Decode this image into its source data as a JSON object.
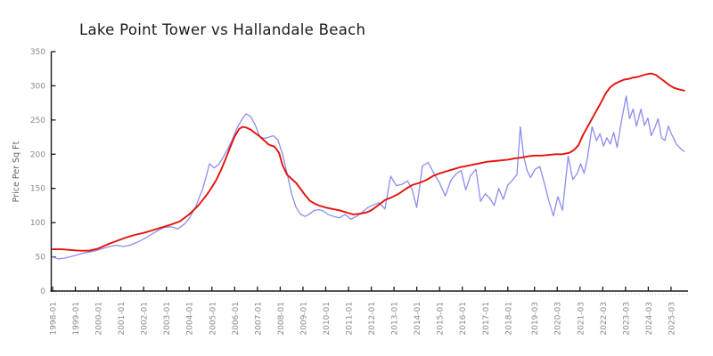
{
  "chart_data": {
    "type": "line",
    "title": "Lake Point Tower vs Hallandale Beach",
    "xlabel": "",
    "ylabel": "Price Per Sq Ft",
    "ylim": [
      0,
      350
    ],
    "xlim_years": [
      1997.95,
      2025.9
    ],
    "grid": false,
    "legend": "none",
    "style": "xkcd-sketch",
    "colors": {
      "axis": "#1a1a1a",
      "tick_labels": "#8a8a8a",
      "background": "#ffffff"
    },
    "y_ticks": [
      0,
      50,
      100,
      150,
      200,
      250,
      300,
      350
    ],
    "x_ticks": [
      {
        "label": "1998-01",
        "year": 1998.0
      },
      {
        "label": "1999-01",
        "year": 1999.0
      },
      {
        "label": "2000-01",
        "year": 2000.0
      },
      {
        "label": "2001-01",
        "year": 2001.0
      },
      {
        "label": "2002-01",
        "year": 2002.0
      },
      {
        "label": "2003-01",
        "year": 2003.0
      },
      {
        "label": "2004-01",
        "year": 2004.0
      },
      {
        "label": "2005-01",
        "year": 2005.0
      },
      {
        "label": "2006-01",
        "year": 2006.0
      },
      {
        "label": "2007-01",
        "year": 2007.0
      },
      {
        "label": "2008-01",
        "year": 2008.0
      },
      {
        "label": "2009-01",
        "year": 2009.0
      },
      {
        "label": "2010-01",
        "year": 2010.0
      },
      {
        "label": "2011-01",
        "year": 2011.0
      },
      {
        "label": "2012-01",
        "year": 2012.0
      },
      {
        "label": "2013-01",
        "year": 2013.0
      },
      {
        "label": "2014-01",
        "year": 2014.0
      },
      {
        "label": "2015-01",
        "year": 2015.0
      },
      {
        "label": "2016-01",
        "year": 2016.0
      },
      {
        "label": "2017-01",
        "year": 2017.0
      },
      {
        "label": "2018-01",
        "year": 2018.0
      },
      {
        "label": "2019-03",
        "year": 2019.17
      },
      {
        "label": "2020-03",
        "year": 2020.17
      },
      {
        "label": "2021-03",
        "year": 2021.17
      },
      {
        "label": "2022-03",
        "year": 2022.17
      },
      {
        "label": "2023-03",
        "year": 2023.17
      },
      {
        "label": "2024-03",
        "year": 2024.17
      },
      {
        "label": "2025-03",
        "year": 2025.17
      }
    ],
    "series": [
      {
        "name": "Lake Point Tower",
        "color": "#8c8cf0",
        "line_width": 1.3,
        "points": [
          [
            1998.0,
            50
          ],
          [
            1998.25,
            47
          ],
          [
            1998.5,
            48
          ],
          [
            1998.75,
            50
          ],
          [
            1999.0,
            52
          ],
          [
            1999.3,
            55
          ],
          [
            1999.6,
            57
          ],
          [
            1999.9,
            59
          ],
          [
            2000.2,
            62
          ],
          [
            2000.5,
            65
          ],
          [
            2000.8,
            67
          ],
          [
            2001.1,
            65
          ],
          [
            2001.4,
            67
          ],
          [
            2001.7,
            71
          ],
          [
            2002.0,
            76
          ],
          [
            2002.3,
            82
          ],
          [
            2002.6,
            88
          ],
          [
            2002.9,
            93
          ],
          [
            2003.2,
            94
          ],
          [
            2003.5,
            91
          ],
          [
            2003.8,
            98
          ],
          [
            2004.0,
            106
          ],
          [
            2004.3,
            124
          ],
          [
            2004.6,
            150
          ],
          [
            2004.9,
            186
          ],
          [
            2005.1,
            180
          ],
          [
            2005.3,
            185
          ],
          [
            2005.5,
            196
          ],
          [
            2005.7,
            208
          ],
          [
            2005.9,
            222
          ],
          [
            2006.1,
            238
          ],
          [
            2006.3,
            250
          ],
          [
            2006.5,
            259
          ],
          [
            2006.7,
            255
          ],
          [
            2006.9,
            243
          ],
          [
            2007.1,
            226
          ],
          [
            2007.3,
            223
          ],
          [
            2007.5,
            225
          ],
          [
            2007.7,
            227
          ],
          [
            2007.9,
            221
          ],
          [
            2008.1,
            200
          ],
          [
            2008.3,
            172
          ],
          [
            2008.5,
            142
          ],
          [
            2008.7,
            122
          ],
          [
            2008.9,
            112
          ],
          [
            2009.1,
            109
          ],
          [
            2009.3,
            113
          ],
          [
            2009.5,
            118
          ],
          [
            2009.7,
            119
          ],
          [
            2009.9,
            117
          ],
          [
            2010.1,
            112
          ],
          [
            2010.35,
            109
          ],
          [
            2010.6,
            107
          ],
          [
            2010.85,
            112
          ],
          [
            2011.1,
            105
          ],
          [
            2011.35,
            109
          ],
          [
            2011.6,
            115
          ],
          [
            2011.85,
            122
          ],
          [
            2012.1,
            126
          ],
          [
            2012.35,
            129
          ],
          [
            2012.6,
            120
          ],
          [
            2012.85,
            168
          ],
          [
            2013.1,
            154
          ],
          [
            2013.35,
            156
          ],
          [
            2013.6,
            161
          ],
          [
            2013.8,
            148
          ],
          [
            2014.0,
            122
          ],
          [
            2014.25,
            183
          ],
          [
            2014.5,
            188
          ],
          [
            2014.75,
            172
          ],
          [
            2015.0,
            158
          ],
          [
            2015.25,
            139
          ],
          [
            2015.5,
            162
          ],
          [
            2015.75,
            172
          ],
          [
            2015.95,
            176
          ],
          [
            2016.15,
            148
          ],
          [
            2016.35,
            168
          ],
          [
            2016.6,
            178
          ],
          [
            2016.8,
            131
          ],
          [
            2017.0,
            142
          ],
          [
            2017.2,
            136
          ],
          [
            2017.4,
            125
          ],
          [
            2017.6,
            150
          ],
          [
            2017.8,
            134
          ],
          [
            2018.0,
            155
          ],
          [
            2018.2,
            162
          ],
          [
            2018.4,
            170
          ],
          [
            2018.55,
            240
          ],
          [
            2018.7,
            196
          ],
          [
            2018.85,
            176
          ],
          [
            2019.0,
            166
          ],
          [
            2019.2,
            178
          ],
          [
            2019.4,
            182
          ],
          [
            2019.6,
            158
          ],
          [
            2019.8,
            132
          ],
          [
            2020.0,
            110
          ],
          [
            2020.2,
            138
          ],
          [
            2020.4,
            118
          ],
          [
            2020.65,
            197
          ],
          [
            2020.85,
            163
          ],
          [
            2021.05,
            172
          ],
          [
            2021.2,
            186
          ],
          [
            2021.35,
            172
          ],
          [
            2021.5,
            195
          ],
          [
            2021.7,
            240
          ],
          [
            2021.9,
            220
          ],
          [
            2022.05,
            230
          ],
          [
            2022.2,
            212
          ],
          [
            2022.35,
            224
          ],
          [
            2022.5,
            215
          ],
          [
            2022.65,
            232
          ],
          [
            2022.8,
            210
          ],
          [
            2023.0,
            250
          ],
          [
            2023.2,
            285
          ],
          [
            2023.35,
            252
          ],
          [
            2023.5,
            266
          ],
          [
            2023.65,
            241
          ],
          [
            2023.85,
            266
          ],
          [
            2024.0,
            242
          ],
          [
            2024.15,
            253
          ],
          [
            2024.3,
            227
          ],
          [
            2024.45,
            238
          ],
          [
            2024.6,
            252
          ],
          [
            2024.75,
            224
          ],
          [
            2024.9,
            220
          ],
          [
            2025.05,
            241
          ],
          [
            2025.2,
            229
          ],
          [
            2025.4,
            215
          ],
          [
            2025.6,
            208
          ],
          [
            2025.75,
            204
          ]
        ]
      },
      {
        "name": "Hallandale Beach",
        "color": "#e3120b",
        "line_width": 1.9,
        "points": [
          [
            1998.0,
            61
          ],
          [
            1998.4,
            61
          ],
          [
            1998.8,
            60
          ],
          [
            1999.2,
            59
          ],
          [
            1999.6,
            59
          ],
          [
            2000.0,
            62
          ],
          [
            2000.4,
            68
          ],
          [
            2000.8,
            73
          ],
          [
            2001.2,
            78
          ],
          [
            2001.6,
            82
          ],
          [
            2002.0,
            85
          ],
          [
            2002.4,
            89
          ],
          [
            2002.8,
            93
          ],
          [
            2003.2,
            97
          ],
          [
            2003.6,
            102
          ],
          [
            2004.0,
            112
          ],
          [
            2004.4,
            125
          ],
          [
            2004.8,
            142
          ],
          [
            2005.0,
            152
          ],
          [
            2005.2,
            163
          ],
          [
            2005.4,
            177
          ],
          [
            2005.6,
            193
          ],
          [
            2005.8,
            210
          ],
          [
            2006.0,
            226
          ],
          [
            2006.2,
            237
          ],
          [
            2006.35,
            240
          ],
          [
            2006.5,
            239
          ],
          [
            2006.7,
            236
          ],
          [
            2006.9,
            231
          ],
          [
            2007.1,
            226
          ],
          [
            2007.3,
            220
          ],
          [
            2007.5,
            214
          ],
          [
            2007.75,
            211
          ],
          [
            2007.95,
            202
          ],
          [
            2008.1,
            184
          ],
          [
            2008.3,
            170
          ],
          [
            2008.5,
            164
          ],
          [
            2008.7,
            158
          ],
          [
            2008.9,
            149
          ],
          [
            2009.1,
            140
          ],
          [
            2009.3,
            132
          ],
          [
            2009.5,
            128
          ],
          [
            2009.7,
            125
          ],
          [
            2010.0,
            122
          ],
          [
            2010.3,
            120
          ],
          [
            2010.6,
            118
          ],
          [
            2010.9,
            115
          ],
          [
            2011.2,
            112
          ],
          [
            2011.5,
            113
          ],
          [
            2011.8,
            115
          ],
          [
            2012.0,
            118
          ],
          [
            2012.3,
            125
          ],
          [
            2012.6,
            133
          ],
          [
            2012.9,
            137
          ],
          [
            2013.2,
            142
          ],
          [
            2013.5,
            149
          ],
          [
            2013.8,
            155
          ],
          [
            2014.1,
            158
          ],
          [
            2014.4,
            162
          ],
          [
            2014.7,
            168
          ],
          [
            2015.0,
            172
          ],
          [
            2015.3,
            175
          ],
          [
            2015.6,
            178
          ],
          [
            2015.9,
            181
          ],
          [
            2016.2,
            183
          ],
          [
            2016.5,
            185
          ],
          [
            2016.8,
            187
          ],
          [
            2017.1,
            189
          ],
          [
            2017.4,
            190
          ],
          [
            2017.7,
            191
          ],
          [
            2018.0,
            192
          ],
          [
            2018.3,
            194
          ],
          [
            2018.6,
            195
          ],
          [
            2018.9,
            197
          ],
          [
            2019.2,
            198
          ],
          [
            2019.5,
            198
          ],
          [
            2019.8,
            199
          ],
          [
            2020.1,
            200
          ],
          [
            2020.4,
            200
          ],
          [
            2020.7,
            202
          ],
          [
            2020.9,
            206
          ],
          [
            2021.1,
            213
          ],
          [
            2021.3,
            228
          ],
          [
            2021.5,
            240
          ],
          [
            2021.7,
            252
          ],
          [
            2021.9,
            264
          ],
          [
            2022.1,
            276
          ],
          [
            2022.3,
            289
          ],
          [
            2022.5,
            298
          ],
          [
            2022.7,
            303
          ],
          [
            2022.9,
            306
          ],
          [
            2023.1,
            309
          ],
          [
            2023.3,
            310
          ],
          [
            2023.5,
            312
          ],
          [
            2023.7,
            313
          ],
          [
            2023.9,
            315
          ],
          [
            2024.1,
            317
          ],
          [
            2024.3,
            318
          ],
          [
            2024.5,
            316
          ],
          [
            2024.7,
            311
          ],
          [
            2024.9,
            306
          ],
          [
            2025.1,
            301
          ],
          [
            2025.3,
            297
          ],
          [
            2025.5,
            295
          ],
          [
            2025.75,
            293
          ]
        ]
      }
    ]
  }
}
